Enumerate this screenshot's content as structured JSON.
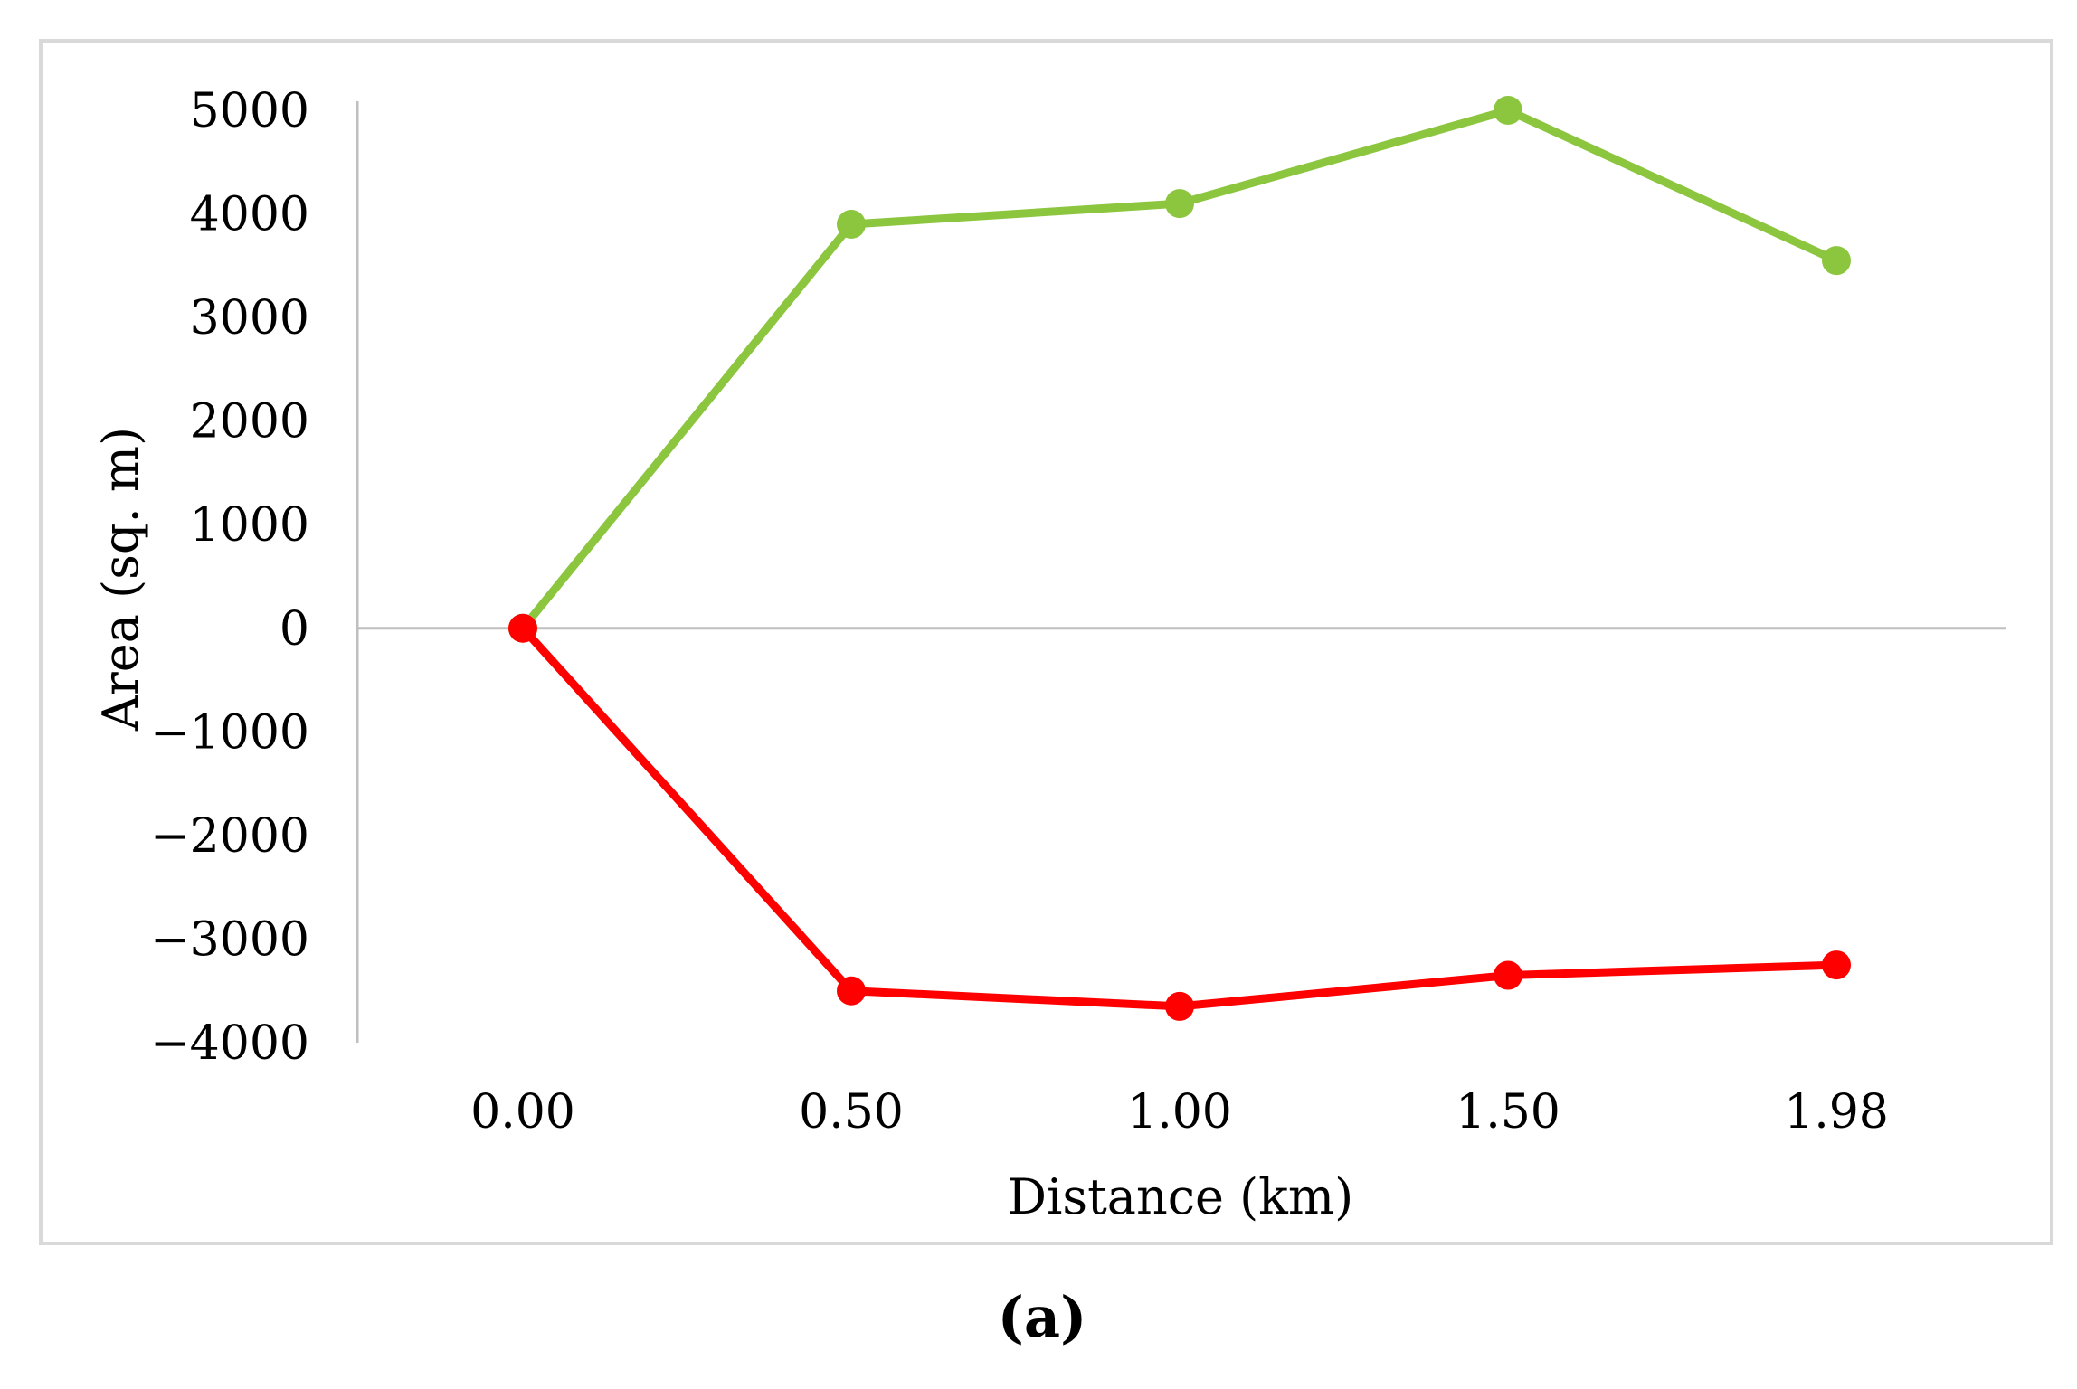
{
  "caption": "(a)",
  "colors": {
    "gain": "#8cc63f",
    "loss": "#ff0000",
    "frame": "#d9d9d9",
    "axis": "#bfbfbf"
  },
  "chart_data": {
    "type": "line",
    "xlabel": "Distance (km)",
    "ylabel": "Area (sq. m)",
    "categories": [
      "0.00",
      "0.50",
      "1.00",
      "1.50",
      "1.98"
    ],
    "ylim": [
      -4000,
      5000
    ],
    "yticks": [
      5000,
      4000,
      3000,
      2000,
      1000,
      0,
      -1000,
      -2000,
      -3000,
      -4000
    ],
    "ytick_labels": [
      "5000",
      "4000",
      "3000",
      "2000",
      "1000",
      "0",
      "−1000",
      "−2000",
      "−3000",
      "−4000"
    ],
    "grid": false,
    "legend": false,
    "series": [
      {
        "color": "#8cc63f",
        "values": [
          0,
          3900,
          4100,
          5000,
          3550
        ]
      },
      {
        "color": "#ff0000",
        "values": [
          0,
          -3500,
          -3650,
          -3350,
          -3250
        ]
      }
    ]
  }
}
